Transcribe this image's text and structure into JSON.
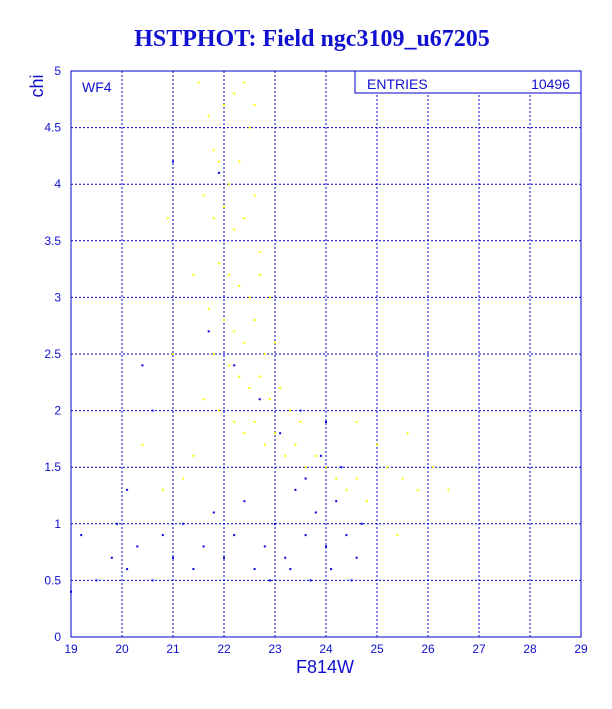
{
  "chart_data": {
    "type": "scatter",
    "title": "HSTPHOT: Field ngc3109_u67205",
    "xlabel": "F814W",
    "ylabel": "chi",
    "xlim": [
      19,
      29
    ],
    "ylim": [
      0,
      5
    ],
    "xticks": [
      19,
      20,
      21,
      22,
      23,
      24,
      25,
      26,
      27,
      28,
      29
    ],
    "yticks": [
      0,
      0.5,
      1,
      1.5,
      2,
      2.5,
      3,
      3.5,
      4,
      4.5,
      5
    ],
    "xtick_labels": [
      "19",
      "20",
      "21",
      "22",
      "23",
      "24",
      "25",
      "26",
      "27",
      "28",
      "29"
    ],
    "ytick_labels": [
      "0",
      "0.5",
      "1",
      "1.5",
      "2",
      "2.5",
      "3",
      "3.5",
      "4",
      "4.5",
      "5"
    ],
    "grid": true,
    "annotation": "WF4",
    "stats_box": {
      "label": "ENTRIES",
      "value": "10496"
    },
    "series": [
      {
        "color": "#ffff00",
        "marker": "point",
        "points": [
          [
            21.5,
            4.9
          ],
          [
            21.7,
            4.6
          ],
          [
            21.8,
            4.3
          ],
          [
            22.0,
            4.7
          ],
          [
            22.2,
            4.8
          ],
          [
            22.4,
            4.9
          ],
          [
            22.6,
            4.7
          ],
          [
            22.5,
            4.5
          ],
          [
            21.9,
            4.2
          ],
          [
            22.1,
            4.0
          ],
          [
            22.3,
            4.2
          ],
          [
            21.6,
            3.9
          ],
          [
            21.8,
            3.7
          ],
          [
            22.0,
            3.8
          ],
          [
            22.2,
            3.6
          ],
          [
            22.4,
            3.7
          ],
          [
            22.6,
            3.9
          ],
          [
            22.7,
            3.4
          ],
          [
            21.9,
            3.3
          ],
          [
            22.1,
            3.2
          ],
          [
            22.3,
            3.1
          ],
          [
            22.5,
            3.0
          ],
          [
            22.7,
            3.2
          ],
          [
            22.9,
            3.0
          ],
          [
            21.7,
            2.9
          ],
          [
            22.0,
            2.8
          ],
          [
            22.2,
            2.7
          ],
          [
            22.4,
            2.6
          ],
          [
            22.6,
            2.8
          ],
          [
            22.8,
            2.5
          ],
          [
            23.0,
            2.6
          ],
          [
            21.8,
            2.5
          ],
          [
            22.1,
            2.4
          ],
          [
            22.3,
            2.3
          ],
          [
            22.5,
            2.2
          ],
          [
            22.7,
            2.3
          ],
          [
            22.9,
            2.1
          ],
          [
            23.1,
            2.2
          ],
          [
            23.3,
            2.0
          ],
          [
            23.5,
            1.9
          ],
          [
            21.6,
            2.1
          ],
          [
            21.9,
            2.0
          ],
          [
            22.2,
            1.9
          ],
          [
            22.4,
            1.8
          ],
          [
            22.6,
            1.9
          ],
          [
            22.8,
            1.7
          ],
          [
            23.0,
            1.8
          ],
          [
            23.2,
            1.6
          ],
          [
            23.4,
            1.7
          ],
          [
            23.6,
            1.5
          ],
          [
            23.8,
            1.6
          ],
          [
            24.0,
            1.5
          ],
          [
            24.2,
            1.4
          ],
          [
            24.4,
            1.3
          ],
          [
            24.6,
            1.4
          ],
          [
            24.8,
            1.2
          ],
          [
            25.2,
            1.5
          ],
          [
            25.5,
            1.4
          ],
          [
            25.8,
            1.3
          ],
          [
            26.1,
            1.5
          ],
          [
            26.4,
            1.3
          ],
          [
            25.0,
            1.7
          ],
          [
            25.6,
            1.8
          ],
          [
            24.6,
            1.9
          ],
          [
            21.2,
            1.4
          ],
          [
            21.4,
            1.6
          ],
          [
            20.8,
            1.3
          ],
          [
            20.4,
            1.7
          ],
          [
            21.0,
            2.5
          ],
          [
            20.9,
            3.7
          ],
          [
            21.4,
            3.2
          ],
          [
            25.4,
            0.9
          ]
        ]
      },
      {
        "color": "#0000e0",
        "marker": "point",
        "points": [
          [
            19.2,
            0.9
          ],
          [
            19.5,
            0.5
          ],
          [
            19.8,
            0.7
          ],
          [
            20.1,
            0.6
          ],
          [
            20.3,
            0.8
          ],
          [
            20.6,
            0.5
          ],
          [
            20.8,
            0.9
          ],
          [
            21.0,
            0.7
          ],
          [
            21.2,
            1.0
          ],
          [
            21.4,
            0.6
          ],
          [
            21.6,
            0.8
          ],
          [
            21.8,
            1.1
          ],
          [
            22.0,
            0.7
          ],
          [
            22.2,
            0.9
          ],
          [
            22.4,
            1.2
          ],
          [
            22.6,
            0.6
          ],
          [
            22.8,
            0.8
          ],
          [
            23.0,
            1.0
          ],
          [
            23.2,
            0.7
          ],
          [
            23.4,
            1.3
          ],
          [
            23.6,
            0.9
          ],
          [
            23.8,
            1.1
          ],
          [
            24.0,
            0.8
          ],
          [
            24.2,
            1.2
          ],
          [
            24.4,
            0.9
          ],
          [
            24.6,
            0.7
          ],
          [
            24.7,
            1.0
          ],
          [
            24.5,
            0.5
          ],
          [
            24.1,
            0.6
          ],
          [
            23.7,
            0.5
          ],
          [
            23.3,
            0.6
          ],
          [
            22.9,
            0.5
          ],
          [
            24.3,
            1.5
          ],
          [
            23.9,
            1.6
          ],
          [
            24.0,
            1.9
          ],
          [
            23.5,
            2.0
          ],
          [
            23.1,
            1.8
          ],
          [
            22.7,
            2.1
          ],
          [
            22.2,
            2.4
          ],
          [
            21.7,
            2.7
          ],
          [
            21.9,
            4.1
          ],
          [
            21.0,
            4.2
          ],
          [
            20.4,
            2.4
          ],
          [
            20.6,
            2.0
          ],
          [
            20.1,
            1.3
          ],
          [
            19.9,
            1.0
          ],
          [
            19.0,
            0.4
          ],
          [
            23.6,
            1.4
          ]
        ]
      }
    ]
  }
}
